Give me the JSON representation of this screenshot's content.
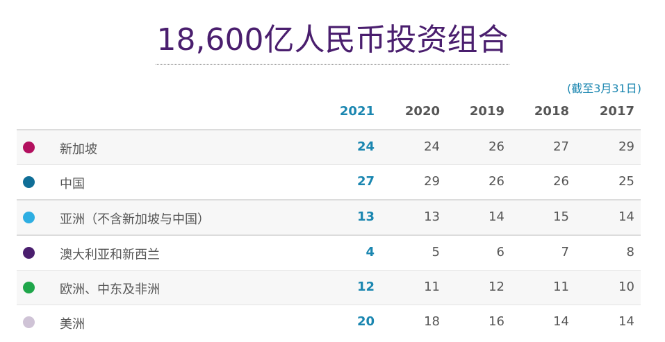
{
  "title": "18,600亿人民币投资组合",
  "as_of": "(截至3月31日)",
  "table": {
    "columns": [
      "2021",
      "2020",
      "2019",
      "2018",
      "2017"
    ],
    "rows": [
      {
        "label": "新加坡",
        "color": "#b3105f",
        "values": [
          "24",
          "24",
          "26",
          "27",
          "29"
        ]
      },
      {
        "label": "中国",
        "color": "#0f6e97",
        "values": [
          "27",
          "29",
          "26",
          "26",
          "25"
        ]
      },
      {
        "label": "亚洲（不含新加坡与中国）",
        "color": "#2eaee2",
        "values": [
          "13",
          "13",
          "14",
          "15",
          "14"
        ]
      },
      {
        "label": "澳大利亚和新西兰",
        "color": "#4a1e6e",
        "values": [
          "4",
          "5",
          "6",
          "7",
          "8"
        ]
      },
      {
        "label": "欧洲、中东及非洲",
        "color": "#1fa64a",
        "values": [
          "12",
          "11",
          "12",
          "11",
          "10"
        ]
      },
      {
        "label": "美洲",
        "color": "#cfc3d6",
        "values": [
          "20",
          "18",
          "16",
          "14",
          "14"
        ]
      }
    ]
  }
}
